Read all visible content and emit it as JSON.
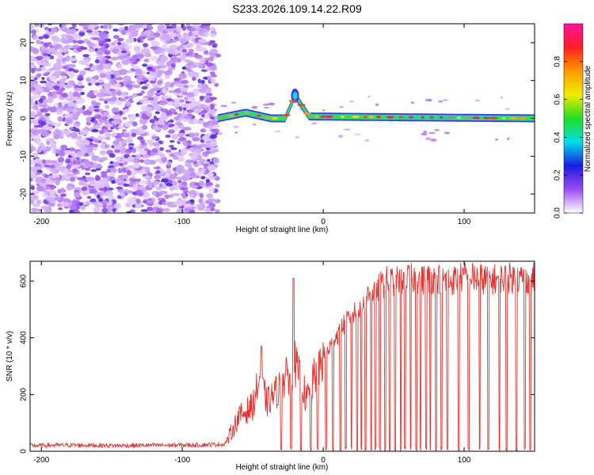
{
  "title": "S233.2026.109.14.22.R09",
  "chart_data": [
    {
      "type": "heatmap",
      "panel": "spectrogram",
      "xlabel": "Height of straight line (km)",
      "ylabel": "Frequency (Hz)",
      "xlim": [
        -208,
        150
      ],
      "ylim": [
        -25,
        25
      ],
      "x_ticks": [
        -200,
        -100,
        0,
        100
      ],
      "y_ticks": [
        -20,
        -10,
        0,
        10,
        20
      ],
      "noise_region_km": [
        -208,
        -75
      ],
      "signal_start_km": -75,
      "carrier_frequency_hz": 0,
      "line_features": [
        {
          "x": -55,
          "freq_hz": 1.5
        },
        {
          "x": -37,
          "freq_hz": 0
        },
        {
          "x": -27,
          "freq_hz": 0
        },
        {
          "x": -20,
          "freq_hz": 6
        },
        {
          "x": -10,
          "freq_hz": 0.5
        }
      ],
      "colorbar": {
        "label": "Normalized spectral amplitude",
        "range": [
          0.0,
          1.0
        ],
        "ticks": [
          0.0,
          0.2,
          0.4,
          0.6,
          0.8
        ],
        "tick_labels": [
          "0.0",
          "0.2",
          "0.4",
          "0.6",
          "0.8"
        ],
        "colormap": [
          "#ffffff",
          "#9a4cf0",
          "#1c1ce0",
          "#00e0e8",
          "#22dd22",
          "#f0ee00",
          "#ff9a00",
          "#ff2020",
          "#ff10a0"
        ]
      }
    },
    {
      "type": "line",
      "panel": "snr",
      "xlabel": "Height of straight line (km)",
      "ylabel": "SNR (10 * v/v)",
      "xlim": [
        -208,
        150
      ],
      "ylim": [
        0,
        670
      ],
      "x_ticks": [
        -200,
        -100,
        0,
        100
      ],
      "y_ticks": [
        0,
        200,
        400,
        600
      ],
      "line_color": "#e8302c",
      "series": [
        {
          "name": "SNR",
          "x": [
            -208,
            -180,
            -150,
            -120,
            -90,
            -70,
            -66,
            -60,
            -50,
            -45,
            -40,
            -35,
            -30,
            -25,
            -20,
            -17,
            -15,
            -12,
            -10,
            -5,
            0,
            5,
            10,
            15,
            20,
            25,
            30,
            35,
            40,
            45,
            50,
            60,
            70,
            80,
            90,
            100,
            110,
            120,
            130,
            140,
            150
          ],
          "y": [
            20,
            22,
            20,
            21,
            22,
            25,
            60,
            120,
            160,
            260,
            170,
            200,
            230,
            270,
            310,
            260,
            240,
            180,
            200,
            280,
            330,
            370,
            410,
            450,
            480,
            500,
            540,
            560,
            580,
            600,
            600,
            610,
            605,
            610,
            600,
            615,
            610,
            605,
            612,
            608,
            610
          ],
          "spikes": [
            {
              "x": -44,
              "y": 370
            },
            {
              "x": -21,
              "y": 610
            }
          ],
          "dropouts": [
            -30,
            -23,
            -16,
            -9,
            -4,
            2,
            7,
            12,
            16,
            20,
            24,
            27,
            30,
            34,
            37,
            40,
            44,
            47,
            51,
            55,
            58,
            62,
            66,
            69,
            73,
            76,
            80,
            84,
            88,
            96,
            103,
            111,
            117,
            125,
            130,
            137,
            143,
            147
          ]
        }
      ]
    }
  ]
}
